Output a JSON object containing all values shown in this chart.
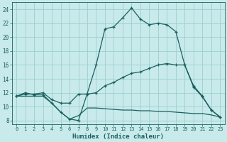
{
  "xlabel": "Humidex (Indice chaleur)",
  "bg_color": "#c8eaea",
  "grid_color": "#9ecece",
  "line_color": "#1a6060",
  "xlim": [
    -0.5,
    23.5
  ],
  "ylim": [
    7.5,
    25.0
  ],
  "xticks": [
    0,
    1,
    2,
    3,
    4,
    5,
    6,
    7,
    8,
    9,
    10,
    11,
    12,
    13,
    14,
    15,
    16,
    17,
    18,
    19,
    20,
    21,
    22,
    23
  ],
  "yticks": [
    8,
    10,
    12,
    14,
    16,
    18,
    20,
    22,
    24
  ],
  "line1_x": [
    0,
    1,
    2,
    3,
    4,
    5,
    6,
    7,
    8,
    9,
    10,
    11,
    12,
    13,
    14,
    15,
    16,
    17,
    18,
    19,
    20,
    21,
    22,
    23
  ],
  "line1_y": [
    11.5,
    12.0,
    11.7,
    11.7,
    10.5,
    9.2,
    8.2,
    8.0,
    11.9,
    16.0,
    21.2,
    21.5,
    22.8,
    24.2,
    22.6,
    21.8,
    22.0,
    21.8,
    20.8,
    16.0,
    12.8,
    11.4,
    9.5,
    8.5
  ],
  "line2_x": [
    0,
    1,
    2,
    3,
    4,
    5,
    6,
    7,
    8,
    9,
    10,
    11,
    12,
    13,
    14,
    15,
    16,
    17,
    18,
    19,
    20,
    21,
    22,
    23
  ],
  "line2_y": [
    11.5,
    11.8,
    11.8,
    12.0,
    11.0,
    10.5,
    10.5,
    11.8,
    11.8,
    12.0,
    13.0,
    13.5,
    14.2,
    14.8,
    15.0,
    15.5,
    16.0,
    16.2,
    16.0,
    16.0,
    13.0,
    11.5,
    9.5,
    8.5
  ],
  "line3_x": [
    0,
    1,
    2,
    3,
    4,
    5,
    6,
    7,
    8,
    9,
    10,
    11,
    12,
    13,
    14,
    15,
    16,
    17,
    18,
    19,
    20,
    21,
    22,
    23
  ],
  "line3_y": [
    11.5,
    11.5,
    11.5,
    11.5,
    10.5,
    9.2,
    8.2,
    8.7,
    9.8,
    9.8,
    9.7,
    9.6,
    9.5,
    9.5,
    9.4,
    9.4,
    9.3,
    9.3,
    9.2,
    9.1,
    9.0,
    9.0,
    8.8,
    8.5
  ]
}
